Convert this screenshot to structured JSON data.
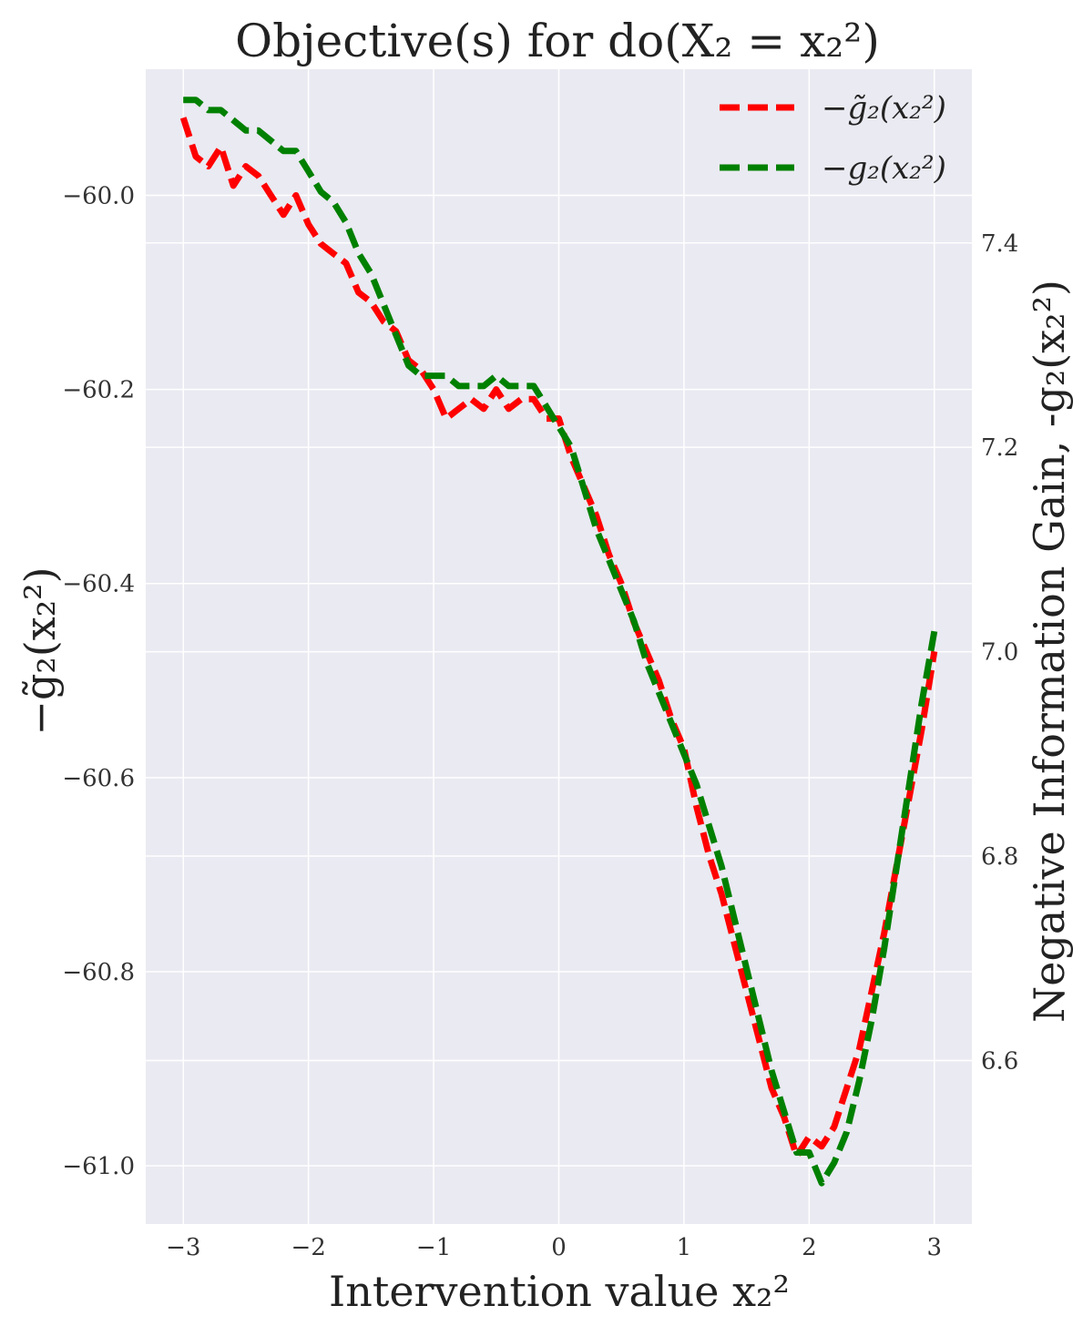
{
  "chart_data": {
    "type": "line",
    "title": "Objective(s) for do(X₂ = x₂²)",
    "xlabel": "Intervention value x₂²",
    "ylabel_left": "−g̃₂(x₂²)",
    "ylabel_right": "Negative Information Gain, -g₂(x₂²)",
    "xlim": [
      -3.3,
      3.3
    ],
    "ylim_left": [
      -61.06,
      -59.87
    ],
    "ylim_right": [
      6.44,
      7.57
    ],
    "x_ticks": [
      -3,
      -2,
      -1,
      0,
      1,
      2,
      3
    ],
    "x_tick_labels": [
      "−3",
      "−2",
      "−1",
      "0",
      "1",
      "2",
      "3"
    ],
    "y_ticks_left": [
      -60.0,
      -60.2,
      -60.4,
      -60.6,
      -60.8,
      -61.0
    ],
    "y_tick_labels_left": [
      "−60.0",
      "−60.2",
      "−60.4",
      "−60.6",
      "−60.8",
      "−61.0"
    ],
    "y_ticks_right": [
      7.4,
      7.2,
      7.0,
      6.8,
      6.6
    ],
    "y_tick_labels_right": [
      "7.4",
      "7.2",
      "7.0",
      "6.8",
      "6.6"
    ],
    "grid": true,
    "background": "#eaeaf2",
    "legend_position": "top-right",
    "series": [
      {
        "name": "−g̃₂(x₂²)",
        "axis": "left",
        "color": "#ff0000",
        "style": "dashed",
        "x": [
          -3.0,
          -2.9,
          -2.8,
          -2.7,
          -2.6,
          -2.5,
          -2.4,
          -2.3,
          -2.2,
          -2.1,
          -2.0,
          -1.9,
          -1.8,
          -1.7,
          -1.6,
          -1.5,
          -1.4,
          -1.3,
          -1.2,
          -1.1,
          -1.0,
          -0.9,
          -0.8,
          -0.7,
          -0.6,
          -0.5,
          -0.4,
          -0.3,
          -0.2,
          -0.1,
          0.0,
          0.1,
          0.2,
          0.3,
          0.4,
          0.5,
          0.6,
          0.7,
          0.8,
          0.9,
          1.0,
          1.1,
          1.2,
          1.3,
          1.4,
          1.5,
          1.6,
          1.7,
          1.8,
          1.9,
          2.0,
          2.1,
          2.2,
          2.3,
          2.4,
          2.5,
          2.6,
          2.7,
          2.8,
          2.9,
          3.0
        ],
        "values": [
          -59.92,
          -59.96,
          -59.97,
          -59.95,
          -59.99,
          -59.97,
          -59.98,
          -60.0,
          -60.02,
          -60.0,
          -60.03,
          -60.05,
          -60.06,
          -60.07,
          -60.1,
          -60.11,
          -60.13,
          -60.14,
          -60.17,
          -60.18,
          -60.2,
          -60.23,
          -60.22,
          -60.21,
          -60.22,
          -60.2,
          -60.22,
          -60.21,
          -60.21,
          -60.23,
          -60.23,
          -60.27,
          -60.3,
          -60.33,
          -60.37,
          -60.4,
          -60.44,
          -60.47,
          -60.5,
          -60.54,
          -60.57,
          -60.63,
          -60.68,
          -60.72,
          -60.77,
          -60.82,
          -60.87,
          -60.92,
          -60.95,
          -60.99,
          -60.97,
          -60.98,
          -60.96,
          -60.92,
          -60.88,
          -60.82,
          -60.76,
          -60.69,
          -60.62,
          -60.55,
          -60.47
        ]
      },
      {
        "name": "−g₂(x₂²)",
        "axis": "right",
        "color": "#008000",
        "style": "dashed",
        "x": [
          -3.0,
          -2.9,
          -2.8,
          -2.7,
          -2.6,
          -2.5,
          -2.4,
          -2.3,
          -2.2,
          -2.1,
          -2.0,
          -1.9,
          -1.8,
          -1.7,
          -1.6,
          -1.5,
          -1.4,
          -1.3,
          -1.2,
          -1.1,
          -1.0,
          -0.9,
          -0.8,
          -0.7,
          -0.6,
          -0.5,
          -0.4,
          -0.3,
          -0.2,
          -0.1,
          0.0,
          0.1,
          0.2,
          0.3,
          0.4,
          0.5,
          0.6,
          0.7,
          0.8,
          0.9,
          1.0,
          1.1,
          1.2,
          1.3,
          1.4,
          1.5,
          1.6,
          1.7,
          1.8,
          1.9,
          2.0,
          2.1,
          2.2,
          2.3,
          2.4,
          2.5,
          2.6,
          2.7,
          2.8,
          2.9,
          3.0
        ],
        "values": [
          7.54,
          7.54,
          7.53,
          7.53,
          7.52,
          7.51,
          7.51,
          7.5,
          7.49,
          7.49,
          7.47,
          7.45,
          7.44,
          7.42,
          7.39,
          7.37,
          7.34,
          7.31,
          7.28,
          7.27,
          7.27,
          7.27,
          7.26,
          7.26,
          7.26,
          7.27,
          7.26,
          7.26,
          7.26,
          7.24,
          7.22,
          7.2,
          7.16,
          7.12,
          7.09,
          7.06,
          7.03,
          6.99,
          6.96,
          6.93,
          6.9,
          6.87,
          6.83,
          6.79,
          6.74,
          6.69,
          6.64,
          6.59,
          6.55,
          6.51,
          6.51,
          6.48,
          6.5,
          6.53,
          6.58,
          6.64,
          6.71,
          6.79,
          6.87,
          6.95,
          7.02
        ]
      }
    ]
  }
}
